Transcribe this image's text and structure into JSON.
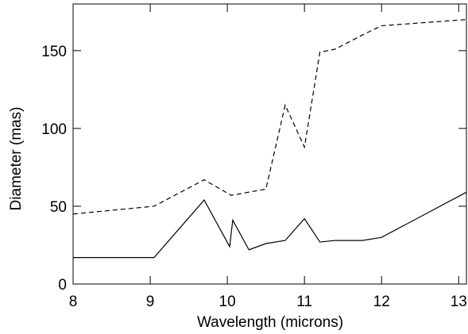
{
  "chart_data": {
    "type": "line",
    "xlabel": "Wavelength (microns)",
    "ylabel": "Diameter (mas)",
    "xlim": [
      8,
      13.1
    ],
    "ylim": [
      0,
      180
    ],
    "xticks": [
      8,
      9,
      10,
      11,
      12,
      13
    ],
    "yticks": [
      0,
      50,
      100,
      150
    ],
    "series": [
      {
        "color": "#000000",
        "dashed": false,
        "x": [
          8,
          9.05,
          9.7,
          10.03,
          10.07,
          10.28,
          10.5,
          10.75,
          11,
          11.2,
          11.4,
          11.75,
          12,
          13.1
        ],
        "values": [
          17,
          17,
          54,
          24,
          41,
          22,
          26,
          28,
          42,
          27,
          28,
          28,
          30,
          59
        ]
      },
      {
        "color": "#000000",
        "dashed": true,
        "x": [
          8,
          9.05,
          9.7,
          10.05,
          10.5,
          10.75,
          11,
          11.2,
          11.4,
          11.75,
          12,
          13.1
        ],
        "values": [
          45,
          50,
          67,
          57,
          61,
          115,
          88,
          149,
          151,
          160,
          166,
          170
        ]
      }
    ]
  }
}
